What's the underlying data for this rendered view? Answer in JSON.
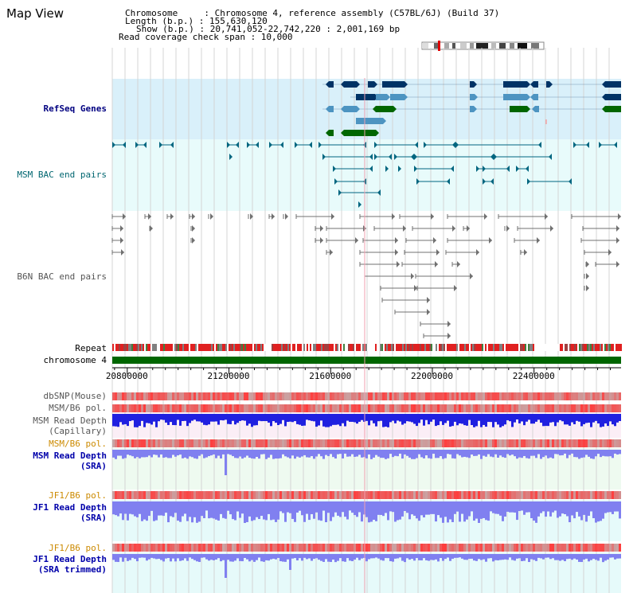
{
  "view": {
    "title": "Map View"
  },
  "info": {
    "chromosome": "Chromosome     : Chromosome 4, reference assembly (C57BL/6J) (Build 37)",
    "length": "Length (b.p.) : 155,630,120",
    "show": "Show (b.p.) : 20,741,052-22,742,220 : 2,001,169 bp",
    "coverage": "Read coverage check span : 10,000"
  },
  "tracks": {
    "refseq": "RefSeq Genes",
    "msm_bac": "MSM BAC end pairs",
    "b6n_bac": "B6N BAC end pairs",
    "repeat": "Repeat",
    "chromosome": "chromosome 4",
    "dbsnp": "dbSNP(Mouse)",
    "msm_b6_pol_1": "MSM/B6 pol.",
    "msm_depth_cap_1": "MSM Read Depth",
    "msm_depth_cap_2": "(Capillary)",
    "msm_b6_pol_2": "MSM/B6 pol.",
    "msm_depth_sra_1": "MSM Read Depth",
    "msm_depth_sra_2": "(SRA)",
    "jf1_b6_pol_1": "JF1/B6 pol.",
    "jf1_depth_sra_1": "JF1 Read Depth",
    "jf1_depth_sra_2": "(SRA)",
    "jf1_b6_pol_2": "JF1/B6 pol.",
    "jf1_depth_trim_1": "JF1 Read Depth",
    "jf1_depth_trim_2": "(SRA trimmed)"
  },
  "axis": {
    "ticks": [
      {
        "label": "20800000",
        "pos": 20800000
      },
      {
        "label": "21200000",
        "pos": 21200000
      },
      {
        "label": "21600000",
        "pos": 21600000
      },
      {
        "label": "22000000",
        "pos": 22000000
      },
      {
        "label": "22400000",
        "pos": 22400000
      }
    ],
    "start": 20741052,
    "end": 22742220
  },
  "colors": {
    "refseq_bg": "#d9f0fa",
    "bac_bg": "#e8fbfb",
    "gene_dark": "#003366",
    "gene_mid": "#4d94c1",
    "gene_green": "#006600",
    "msm_bac": "#006680",
    "b6n_bac": "#707070",
    "chromosome": "#006600",
    "depth_blue": "#2020e0",
    "depth_light": "#8080f0"
  }
}
